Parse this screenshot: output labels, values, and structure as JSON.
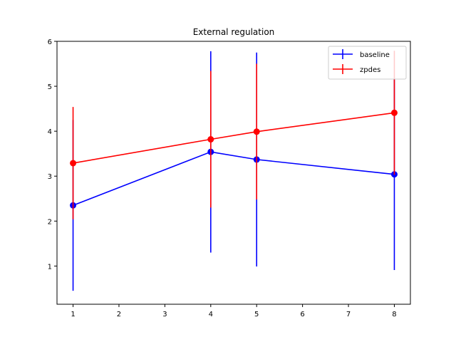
{
  "chart_data": {
    "type": "line",
    "title": "External regulation",
    "xlabel": "",
    "ylabel": "",
    "xlim": [
      0.65,
      8.35
    ],
    "ylim": [
      0.15,
      6.0
    ],
    "xticks": [
      1,
      2,
      3,
      4,
      5,
      6,
      7,
      8
    ],
    "yticks": [
      1,
      2,
      3,
      4,
      5,
      6
    ],
    "legend_position": "top-right",
    "grid": false,
    "series": [
      {
        "name": "baseline",
        "color": "#0000ff",
        "x": [
          1,
          4,
          5,
          8
        ],
        "y": [
          2.35,
          3.54,
          3.37,
          3.04
        ],
        "yerr": [
          1.9,
          2.24,
          2.38,
          2.13
        ]
      },
      {
        "name": "zpdes",
        "color": "#ff0000",
        "x": [
          1,
          4,
          5,
          8
        ],
        "y": [
          3.29,
          3.82,
          3.99,
          4.41
        ],
        "yerr": [
          1.25,
          1.52,
          1.51,
          1.38
        ]
      }
    ]
  }
}
